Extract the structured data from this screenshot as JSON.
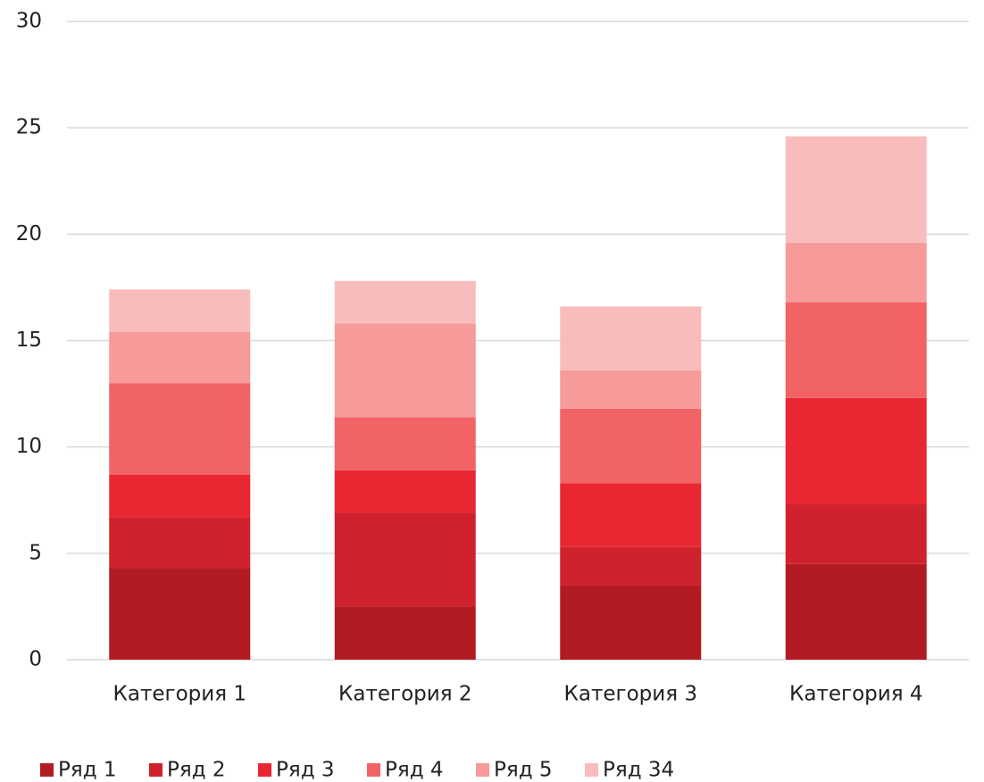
{
  "chart_data": {
    "type": "stacked_bar",
    "categories": [
      "Категория 1",
      "Категория 2",
      "Категория 3",
      "Категория 4"
    ],
    "series": [
      {
        "name": "Ряд 1",
        "color": "#b31b23",
        "values": [
          4.3,
          2.5,
          3.5,
          4.5
        ]
      },
      {
        "name": "Ряд 2",
        "color": "#d0222c",
        "values": [
          2.4,
          4.4,
          1.8,
          2.8
        ]
      },
      {
        "name": "Ряд 3",
        "color": "#e82733",
        "values": [
          2.0,
          2.0,
          3.0,
          5.0
        ]
      },
      {
        "name": "Ряд 4",
        "color": "#f26366",
        "values": [
          4.3,
          2.5,
          3.5,
          4.5
        ]
      },
      {
        "name": "Ряд 5",
        "color": "#f69a9a",
        "values": [
          2.4,
          4.4,
          1.8,
          2.8
        ]
      },
      {
        "name": "Ряд 34",
        "color": "#f9bcbc",
        "values": [
          2.0,
          2.0,
          3.0,
          5.0
        ]
      }
    ],
    "ylim": [
      0,
      30
    ],
    "yticks": [
      0,
      5,
      10,
      15,
      20,
      25,
      30
    ],
    "grid": true,
    "legend": "bottom"
  }
}
